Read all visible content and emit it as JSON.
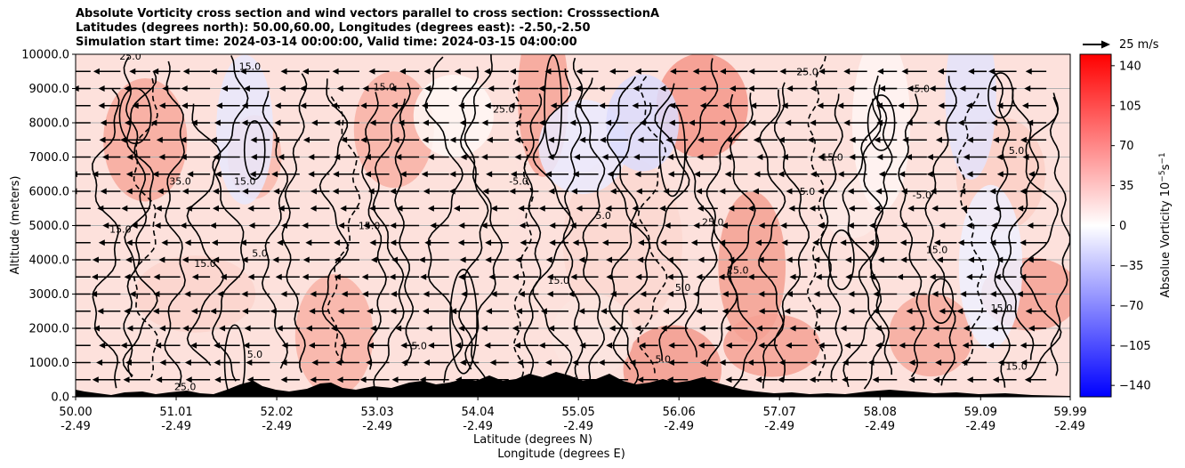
{
  "title_lines": [
    "Absolute Vorticity cross section and wind vectors parallel to cross section: CrosssectionA",
    "Latitudes (degrees north): 50.00,60.00, Longitudes (degrees east): -2.50,-2.50",
    "Simulation start time: 2024-03-14 00:00:00, Valid time: 2024-03-15 04:00:00"
  ],
  "ref_vector_label": "25 m/s",
  "chart_data": {
    "type": "heatmap",
    "xlabel": "Latitude (degrees N)",
    "xlabel2": "Longitude (degrees E)",
    "ylabel": "Altitude (meters)",
    "colorbar_label": "Absolue Vorticity 10",
    "colorbar_label_exp": "−5",
    "colorbar_label_units": "s",
    "colorbar_label_units_exp": "−1",
    "xlim": [
      50.0,
      59.99
    ],
    "ylim": [
      0,
      10000
    ],
    "x_ticks": [
      {
        "lat": "50.00",
        "lon": "-2.49",
        "value": 50.0
      },
      {
        "lat": "51.01",
        "lon": "-2.49",
        "value": 51.01
      },
      {
        "lat": "52.02",
        "lon": "-2.49",
        "value": 52.02
      },
      {
        "lat": "53.03",
        "lon": "-2.49",
        "value": 53.03
      },
      {
        "lat": "54.04",
        "lon": "-2.49",
        "value": 54.04
      },
      {
        "lat": "55.05",
        "lon": "-2.49",
        "value": 55.05
      },
      {
        "lat": "56.06",
        "lon": "-2.49",
        "value": 56.06
      },
      {
        "lat": "57.07",
        "lon": "-2.49",
        "value": 57.07
      },
      {
        "lat": "58.08",
        "lon": "-2.49",
        "value": 58.08
      },
      {
        "lat": "59.09",
        "lon": "-2.49",
        "value": 59.09
      },
      {
        "lat": "59.99",
        "lon": "-2.49",
        "value": 59.99
      }
    ],
    "y_ticks": [
      {
        "label": "0.0",
        "value": 0
      },
      {
        "label": "1000.0",
        "value": 1000
      },
      {
        "label": "2000.0",
        "value": 2000
      },
      {
        "label": "3000.0",
        "value": 3000
      },
      {
        "label": "4000.0",
        "value": 4000
      },
      {
        "label": "5000.0",
        "value": 5000
      },
      {
        "label": "6000.0",
        "value": 6000
      },
      {
        "label": "7000.0",
        "value": 7000
      },
      {
        "label": "8000.0",
        "value": 8000
      },
      {
        "label": "9000.0",
        "value": 9000
      },
      {
        "label": "10000.0",
        "value": 10000
      }
    ],
    "colorbar_range": [
      -150,
      150
    ],
    "colorbar_ticks": [
      {
        "label": "140",
        "value": 140
      },
      {
        "label": "105",
        "value": 105
      },
      {
        "label": "70",
        "value": 70
      },
      {
        "label": "35",
        "value": 35
      },
      {
        "label": "0",
        "value": 0
      },
      {
        "label": "−35",
        "value": -35
      },
      {
        "label": "−70",
        "value": -70
      },
      {
        "label": "−105",
        "value": -105
      },
      {
        "label": "−140",
        "value": -140
      }
    ],
    "colormap": {
      "negative": "#0000ff",
      "zero": "#ffffff",
      "positive": "#ff0000"
    },
    "contour_labels": [
      {
        "text": "15.0",
        "lat": 51.75,
        "alt": 9650
      },
      {
        "text": "25.0",
        "lat": 50.55,
        "alt": 9950
      },
      {
        "text": "15.0",
        "lat": 53.1,
        "alt": 9050
      },
      {
        "text": "25.0",
        "lat": 54.3,
        "alt": 8400
      },
      {
        "text": "15.0",
        "lat": 51.3,
        "alt": 3900
      },
      {
        "text": "5.0",
        "lat": 51.85,
        "alt": 4200
      },
      {
        "text": "15.0",
        "lat": 52.95,
        "alt": 5000
      },
      {
        "text": "15.0",
        "lat": 54.85,
        "alt": 3400
      },
      {
        "text": "5.0",
        "lat": 55.3,
        "alt": 5300
      },
      {
        "text": "25.0",
        "lat": 56.4,
        "alt": 5100
      },
      {
        "text": "25.0",
        "lat": 56.65,
        "alt": 3700
      },
      {
        "text": "5.0",
        "lat": 56.1,
        "alt": 3200
      },
      {
        "text": "15.0",
        "lat": 57.6,
        "alt": 7000
      },
      {
        "text": "5.0",
        "lat": 57.35,
        "alt": 6000
      },
      {
        "text": "-5.0",
        "lat": 58.5,
        "alt": 5900
      },
      {
        "text": "5.0",
        "lat": 59.45,
        "alt": 7200
      },
      {
        "text": "25.0",
        "lat": 57.35,
        "alt": 9500
      },
      {
        "text": "5.0",
        "lat": 58.5,
        "alt": 9000
      },
      {
        "text": "15.0",
        "lat": 58.65,
        "alt": 4300
      },
      {
        "text": "15.0",
        "lat": 59.3,
        "alt": 2600
      },
      {
        "text": "15.0",
        "lat": 59.45,
        "alt": 900
      },
      {
        "text": "5.0",
        "lat": 51.8,
        "alt": 1250
      },
      {
        "text": "25.0",
        "lat": 51.1,
        "alt": 300
      },
      {
        "text": "15.0",
        "lat": 51.7,
        "alt": 6300
      },
      {
        "text": "35.0",
        "lat": 51.05,
        "alt": 6300
      },
      {
        "text": "15.0",
        "lat": 50.45,
        "alt": 4900
      },
      {
        "text": "5.0",
        "lat": 53.45,
        "alt": 1500
      },
      {
        "text": "5.0",
        "lat": 55.9,
        "alt": 1100
      },
      {
        "text": "-5.0",
        "lat": 54.45,
        "alt": 6300
      }
    ]
  }
}
